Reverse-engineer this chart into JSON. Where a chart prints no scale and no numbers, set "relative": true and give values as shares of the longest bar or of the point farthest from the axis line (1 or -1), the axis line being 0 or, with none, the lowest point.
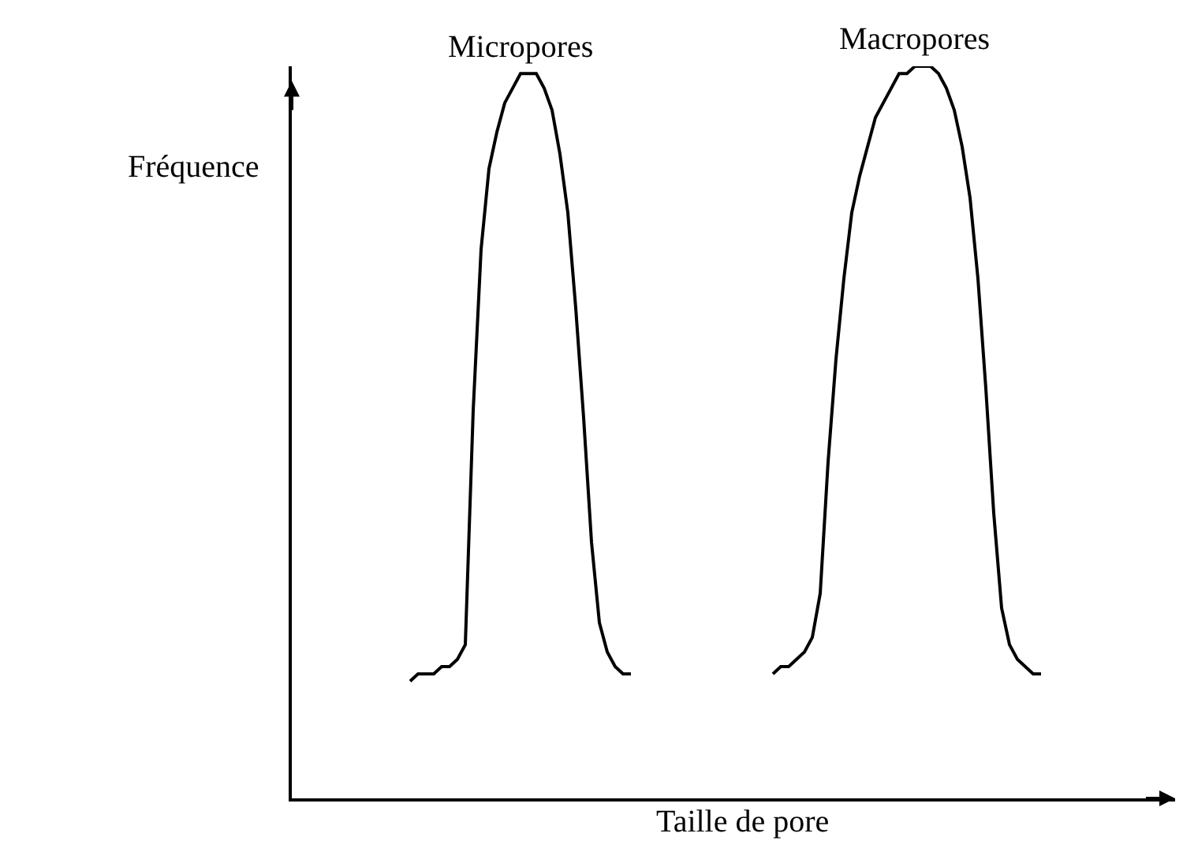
{
  "chart_data": {
    "type": "line",
    "relative": true,
    "xlabel": "Taille de pore",
    "ylabel": "Fréquence",
    "legend": false,
    "grid": false,
    "marker": "none",
    "line_style": "solid",
    "categories": [
      null,
      null,
      null,
      null,
      null,
      null,
      null,
      null,
      null,
      null,
      null,
      null,
      null,
      null,
      null,
      null,
      null,
      null,
      null,
      null,
      null,
      null,
      null,
      null,
      null,
      null,
      null,
      null,
      null,
      null,
      null,
      null,
      null,
      null,
      null,
      null,
      null,
      null,
      null,
      null,
      null,
      null,
      null,
      null,
      null,
      null,
      null,
      null,
      null,
      null,
      null,
      null,
      null,
      null,
      null,
      null,
      null,
      null,
      null,
      null,
      null,
      null,
      null,
      null,
      null,
      null,
      null,
      null,
      null,
      null,
      null,
      null,
      null,
      null,
      null,
      null,
      null,
      null,
      null,
      null,
      null,
      null,
      null,
      null,
      null,
      null,
      null,
      null,
      null,
      null,
      null,
      null,
      null,
      null,
      null,
      null,
      null,
      null,
      null,
      null,
      null,
      null,
      null,
      null,
      null,
      null,
      null,
      null,
      null,
      null,
      null,
      null,
      null
    ],
    "series": [
      {
        "name": "Micropores",
        "color": "#000000",
        "values": [
          null,
          null,
          null,
          null,
          null,
          null,
          null,
          null,
          null,
          null,
          null,
          null,
          null,
          null,
          null,
          0.16,
          0.17,
          0.17,
          0.17,
          0.18,
          0.18,
          0.19,
          0.21,
          0.53,
          0.75,
          0.86,
          0.91,
          0.95,
          0.97,
          0.99,
          0.99,
          0.99,
          0.97,
          0.94,
          0.88,
          0.8,
          0.67,
          0.52,
          0.35,
          0.24,
          0.2,
          0.18,
          0.17,
          0.17,
          null,
          null,
          null,
          null,
          null,
          null,
          null,
          null,
          null,
          null,
          null,
          null,
          null,
          null,
          null,
          null,
          null,
          null,
          null,
          null,
          null,
          null,
          null,
          null,
          null,
          null,
          null,
          null,
          null,
          null,
          null,
          null,
          null,
          null,
          null,
          null,
          null,
          null,
          null,
          null,
          null,
          null,
          null,
          null,
          null,
          null,
          null,
          null,
          null,
          null,
          null,
          null,
          null,
          null,
          null,
          null,
          null,
          null,
          null,
          null,
          null,
          null,
          null,
          null,
          null,
          null,
          null,
          null,
          null
        ]
      },
      {
        "name": "Macropores",
        "color": "#000000",
        "values": [
          null,
          null,
          null,
          null,
          null,
          null,
          null,
          null,
          null,
          null,
          null,
          null,
          null,
          null,
          null,
          null,
          null,
          null,
          null,
          null,
          null,
          null,
          null,
          null,
          null,
          null,
          null,
          null,
          null,
          null,
          null,
          null,
          null,
          null,
          null,
          null,
          null,
          null,
          null,
          null,
          null,
          null,
          null,
          null,
          null,
          null,
          null,
          null,
          null,
          null,
          null,
          null,
          null,
          null,
          null,
          null,
          null,
          null,
          null,
          null,
          null,
          0.17,
          0.18,
          0.18,
          0.19,
          0.2,
          0.22,
          0.28,
          0.46,
          0.6,
          0.71,
          0.8,
          0.85,
          0.89,
          0.93,
          0.95,
          0.97,
          0.99,
          0.99,
          1.0,
          1,
          1.0,
          0.99,
          0.97,
          0.94,
          0.89,
          0.82,
          0.71,
          0.56,
          0.39,
          0.26,
          0.21,
          0.19,
          0.18,
          0.17,
          0.17,
          null,
          null,
          null,
          null,
          null,
          null,
          null,
          null,
          null,
          null,
          null,
          null,
          null,
          null,
          null,
          null,
          null
        ]
      }
    ]
  }
}
